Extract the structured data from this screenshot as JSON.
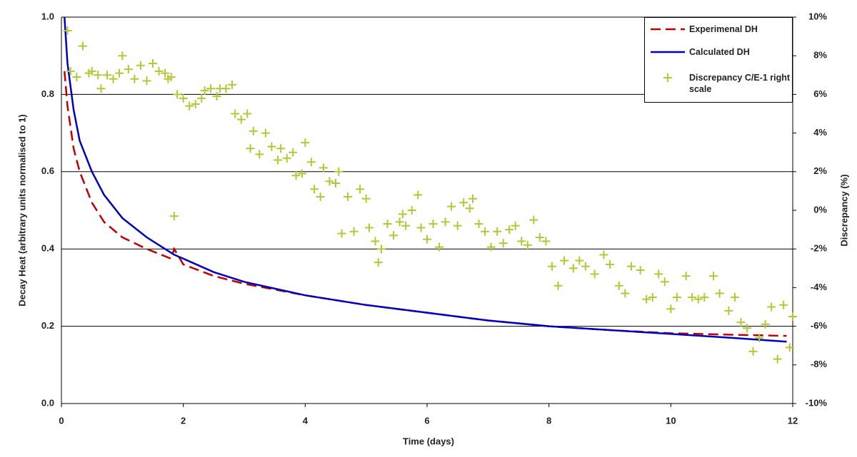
{
  "chart_data": {
    "type": "line",
    "x_label": "Time (days)",
    "y_label": "Decay Heat (arbitrary units normalised to 1)",
    "y2_label": "Discrepancy (%)",
    "x": [
      0.05,
      0.1,
      0.2,
      0.3,
      0.5,
      0.7,
      1.0,
      1.4,
      1.8,
      1.85,
      2.0,
      2.5,
      3,
      4,
      5,
      6,
      7,
      8,
      9,
      10,
      11,
      11.9
    ],
    "series": [
      {
        "name": "Experimenal DH",
        "color": "#c00000",
        "line_style": "dashed",
        "values": [
          0.86,
          0.77,
          0.66,
          0.6,
          0.52,
          0.47,
          0.43,
          0.4,
          0.375,
          0.4,
          0.36,
          0.33,
          0.31,
          0.28,
          0.255,
          0.235,
          0.215,
          0.2,
          0.19,
          0.182,
          0.178,
          0.175
        ]
      },
      {
        "name": "Calculated DH",
        "color": "#0000c0",
        "line_style": "solid",
        "values": [
          1.0,
          0.88,
          0.76,
          0.68,
          0.6,
          0.54,
          0.48,
          0.43,
          0.39,
          0.385,
          0.375,
          0.34,
          0.315,
          0.28,
          0.255,
          0.235,
          0.215,
          0.2,
          0.19,
          0.18,
          0.17,
          0.16
        ]
      },
      {
        "name": "Discrepancy C/E-1 right scale",
        "type": "scatter",
        "marker": "+",
        "axis": "y2",
        "color": "#b5c735",
        "x": [
          0.1,
          0.15,
          0.25,
          0.35,
          0.45,
          0.5,
          0.6,
          0.65,
          0.75,
          0.85,
          0.95,
          1.0,
          1.1,
          1.2,
          1.3,
          1.4,
          1.5,
          1.6,
          1.7,
          1.75,
          1.8,
          1.85,
          1.9,
          2.0,
          2.1,
          2.2,
          2.3,
          2.35,
          2.45,
          2.55,
          2.6,
          2.7,
          2.8,
          2.85,
          2.95,
          3.05,
          3.1,
          3.15,
          3.25,
          3.35,
          3.45,
          3.55,
          3.6,
          3.7,
          3.8,
          3.85,
          3.95,
          4.0,
          4.1,
          4.15,
          4.25,
          4.3,
          4.4,
          4.5,
          4.55,
          4.6,
          4.7,
          4.8,
          4.9,
          5.0,
          5.05,
          5.15,
          5.2,
          5.25,
          5.35,
          5.45,
          5.55,
          5.6,
          5.65,
          5.75,
          5.85,
          5.9,
          6.0,
          6.1,
          6.2,
          6.3,
          6.4,
          6.5,
          6.6,
          6.7,
          6.75,
          6.85,
          6.95,
          7.05,
          7.15,
          7.25,
          7.35,
          7.45,
          7.55,
          7.65,
          7.75,
          7.85,
          7.95,
          8.05,
          8.15,
          8.25,
          8.4,
          8.5,
          8.6,
          8.75,
          8.9,
          9.0,
          9.15,
          9.25,
          9.35,
          9.5,
          9.6,
          9.7,
          9.8,
          9.9,
          10.0,
          10.1,
          10.25,
          10.35,
          10.45,
          10.55,
          10.7,
          10.8,
          10.95,
          11.05,
          11.15,
          11.25,
          11.35,
          11.45,
          11.55,
          11.65,
          11.75,
          11.85,
          11.95,
          12.0
        ],
        "values": [
          9.3,
          7.2,
          6.9,
          8.5,
          7.1,
          7.2,
          7.0,
          6.3,
          7.0,
          6.8,
          7.1,
          8.0,
          7.3,
          6.8,
          7.5,
          6.7,
          7.6,
          7.2,
          7.1,
          6.8,
          6.9,
          -0.3,
          6.0,
          5.8,
          5.4,
          5.5,
          5.8,
          6.2,
          6.3,
          5.9,
          6.3,
          6.3,
          6.5,
          5.0,
          4.7,
          5.0,
          3.2,
          4.1,
          2.9,
          4.0,
          3.3,
          2.6,
          3.2,
          2.7,
          3.0,
          1.8,
          1.9,
          3.5,
          2.5,
          1.1,
          0.7,
          2.2,
          1.5,
          1.4,
          2.0,
          -1.2,
          0.7,
          -1.1,
          1.1,
          0.6,
          -0.9,
          -1.6,
          -2.7,
          -2.0,
          -0.7,
          -1.3,
          -0.6,
          -0.2,
          -0.8,
          0.0,
          0.8,
          -0.9,
          -1.5,
          -0.7,
          -1.9,
          -0.6,
          0.2,
          -0.8,
          0.4,
          0.1,
          0.6,
          -0.7,
          -1.1,
          -1.9,
          -1.1,
          -1.7,
          -1.0,
          -0.8,
          -1.6,
          -1.8,
          -0.5,
          -1.4,
          -1.6,
          -2.9,
          -3.9,
          -2.6,
          -3.0,
          -2.6,
          -2.9,
          -3.3,
          -2.3,
          -2.8,
          -3.9,
          -4.3,
          -2.9,
          -3.1,
          -4.6,
          -4.5,
          -3.3,
          -3.7,
          -5.1,
          -4.5,
          -3.4,
          -4.5,
          -4.6,
          -4.5,
          -3.4,
          -4.3,
          -5.2,
          -4.5,
          -5.8,
          -6.1,
          -7.3,
          -6.6,
          -5.9,
          -5.0,
          -7.7,
          -4.9,
          -7.1,
          -5.5
        ]
      }
    ],
    "xlim": [
      0,
      12
    ],
    "xticks": [
      0,
      2,
      4,
      6,
      8,
      10,
      12
    ],
    "ylim": [
      0,
      1
    ],
    "yticks": [
      {
        "value": 0,
        "label": "0.0"
      },
      0.2,
      0.4,
      0.6,
      0.8,
      {
        "value": 1,
        "label": "1.0"
      }
    ],
    "y2lim": [
      -10,
      10
    ],
    "y2ticks": [
      {
        "value": -10,
        "label": "-10%"
      },
      {
        "value": -8,
        "label": "-8%"
      },
      {
        "value": -6,
        "label": "-6%"
      },
      {
        "value": -4,
        "label": "-4%"
      },
      {
        "value": -2,
        "label": "-2%"
      },
      {
        "value": 0,
        "label": "0%"
      },
      {
        "value": 2,
        "label": "2%"
      },
      {
        "value": 4,
        "label": "4%"
      },
      {
        "value": 6,
        "label": "6%"
      },
      {
        "value": 8,
        "label": "8%"
      },
      {
        "value": 10,
        "label": "10%"
      }
    ],
    "grid": true,
    "legend": "top-right"
  }
}
